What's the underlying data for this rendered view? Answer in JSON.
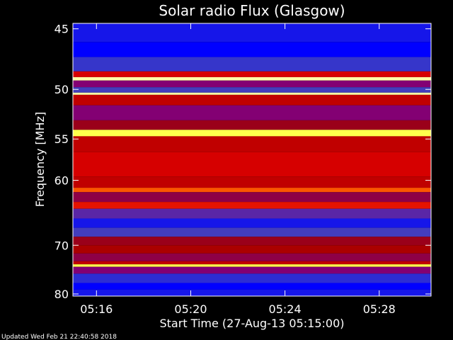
{
  "chart_data": {
    "type": "heatmap",
    "title": "Solar radio Flux (Glasgow)",
    "xlabel": "Start Time (27-Aug-13 05:15:00)",
    "ylabel": "Frequency [MHz]",
    "x_ticks": [
      "05:16",
      "05:20",
      "05:24",
      "05:28"
    ],
    "x_tick_minutes": [
      16,
      20,
      24,
      28
    ],
    "xlim_minutes": [
      15,
      30.2
    ],
    "y_ticks": [
      45,
      50,
      55,
      60,
      70,
      80
    ],
    "ylim": [
      44.6,
      80.5
    ],
    "y_scale": "reciprocal",
    "colormap": [
      "#0000ff",
      "#4040c0",
      "#800080",
      "#a00000",
      "#e00000",
      "#ff6000",
      "#ffff00",
      "#ffffff"
    ],
    "bands": [
      {
        "f0": 44.6,
        "f1": 46.0,
        "level": 0.05
      },
      {
        "f0": 46.0,
        "f1": 47.2,
        "level": 0.0
      },
      {
        "f0": 47.2,
        "f1": 48.4,
        "level": 0.12
      },
      {
        "f0": 48.4,
        "f1": 48.9,
        "level": 0.55
      },
      {
        "f0": 48.9,
        "f1": 49.2,
        "level": 0.95
      },
      {
        "f0": 49.2,
        "f1": 49.8,
        "level": 0.3
      },
      {
        "f0": 49.8,
        "f1": 50.3,
        "level": 0.15
      },
      {
        "f0": 50.3,
        "f1": 50.5,
        "level": 0.95
      },
      {
        "f0": 50.5,
        "f1": 51.5,
        "level": 0.5
      },
      {
        "f0": 51.5,
        "f1": 53.0,
        "level": 0.3
      },
      {
        "f0": 53.0,
        "f1": 54.0,
        "level": 0.4
      },
      {
        "f0": 54.0,
        "f1": 54.7,
        "level": 0.9
      },
      {
        "f0": 54.7,
        "f1": 56.5,
        "level": 0.5
      },
      {
        "f0": 56.5,
        "f1": 59.5,
        "level": 0.55
      },
      {
        "f0": 59.5,
        "f1": 61.0,
        "level": 0.5
      },
      {
        "f0": 61.0,
        "f1": 61.6,
        "level": 0.7
      },
      {
        "f0": 61.6,
        "f1": 63.0,
        "level": 0.35
      },
      {
        "f0": 63.0,
        "f1": 64.0,
        "level": 0.6
      },
      {
        "f0": 64.0,
        "f1": 65.5,
        "level": 0.2
      },
      {
        "f0": 65.5,
        "f1": 67.0,
        "level": 0.05
      },
      {
        "f0": 67.0,
        "f1": 68.5,
        "level": 0.15
      },
      {
        "f0": 68.5,
        "f1": 70.0,
        "level": 0.4
      },
      {
        "f0": 70.0,
        "f1": 71.5,
        "level": 0.45
      },
      {
        "f0": 71.5,
        "f1": 73.0,
        "level": 0.35
      },
      {
        "f0": 73.0,
        "f1": 73.6,
        "level": 0.5
      },
      {
        "f0": 73.6,
        "f1": 74.1,
        "level": 0.9
      },
      {
        "f0": 74.1,
        "f1": 75.5,
        "level": 0.3
      },
      {
        "f0": 75.5,
        "f1": 77.5,
        "level": 0.1
      },
      {
        "f0": 77.5,
        "f1": 79.0,
        "level": 0.0
      },
      {
        "f0": 79.0,
        "f1": 80.5,
        "level": 0.05
      }
    ]
  },
  "footer": {
    "updated": "Updated Wed Feb 21 22:40:58 2018"
  }
}
